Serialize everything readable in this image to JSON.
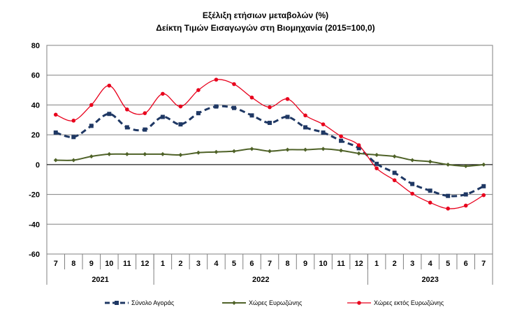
{
  "chart_data": {
    "type": "line",
    "title": "Εξέλιξη ετήσιων μεταβολών (%)",
    "subtitle": "Δείκτη Τιμών Εισαγωγών στη Βιομηχανία (2015=100,0)",
    "xlabel": "",
    "ylabel": "",
    "ylim": [
      -60,
      80
    ],
    "yticks": [
      80,
      60,
      40,
      20,
      0,
      -20,
      -40,
      -60
    ],
    "categories": [
      "7",
      "8",
      "9",
      "10",
      "11",
      "12",
      "1",
      "2",
      "3",
      "4",
      "5",
      "6",
      "7",
      "8",
      "9",
      "10",
      "11",
      "12",
      "1",
      "2",
      "3",
      "4",
      "5",
      "6",
      "7"
    ],
    "years": [
      {
        "label": "2021",
        "start": 0,
        "end": 5
      },
      {
        "label": "2022",
        "start": 6,
        "end": 17
      },
      {
        "label": "2023",
        "start": 18,
        "end": 24
      }
    ],
    "grid": true,
    "legend_position": "bottom",
    "series": [
      {
        "name": "Σύνολο Αγοράς",
        "color": "#1F3864",
        "style": "dashed-square",
        "values": [
          21.5,
          18.5,
          26.0,
          34.0,
          25.0,
          23.5,
          32.0,
          27.0,
          34.5,
          39.0,
          38.0,
          33.0,
          28.0,
          32.0,
          25.0,
          21.5,
          16.0,
          11.0,
          0.5,
          -5.5,
          -13.0,
          -17.5,
          -21.0,
          -20.0,
          -14.5
        ]
      },
      {
        "name": "Χώρες Ευρωζώνης",
        "color": "#4F6228",
        "style": "solid-diamond",
        "values": [
          3.0,
          3.0,
          5.5,
          7.0,
          7.0,
          7.0,
          7.0,
          6.5,
          8.0,
          8.5,
          9.0,
          10.5,
          9.0,
          10.0,
          10.0,
          10.5,
          9.5,
          7.5,
          6.5,
          5.5,
          3.0,
          2.0,
          0.0,
          -1.0,
          0.0
        ]
      },
      {
        "name": "Χώρες εκτός Ευρωζώνης",
        "color": "#E8001C",
        "style": "solid-circle",
        "values": [
          33.5,
          29.5,
          40.0,
          53.0,
          37.0,
          34.5,
          47.5,
          39.0,
          50.0,
          57.0,
          54.0,
          45.0,
          38.5,
          44.0,
          33.0,
          27.0,
          19.0,
          13.0,
          -2.5,
          -10.5,
          -19.5,
          -25.5,
          -29.5,
          -27.5,
          -20.5
        ]
      }
    ]
  }
}
